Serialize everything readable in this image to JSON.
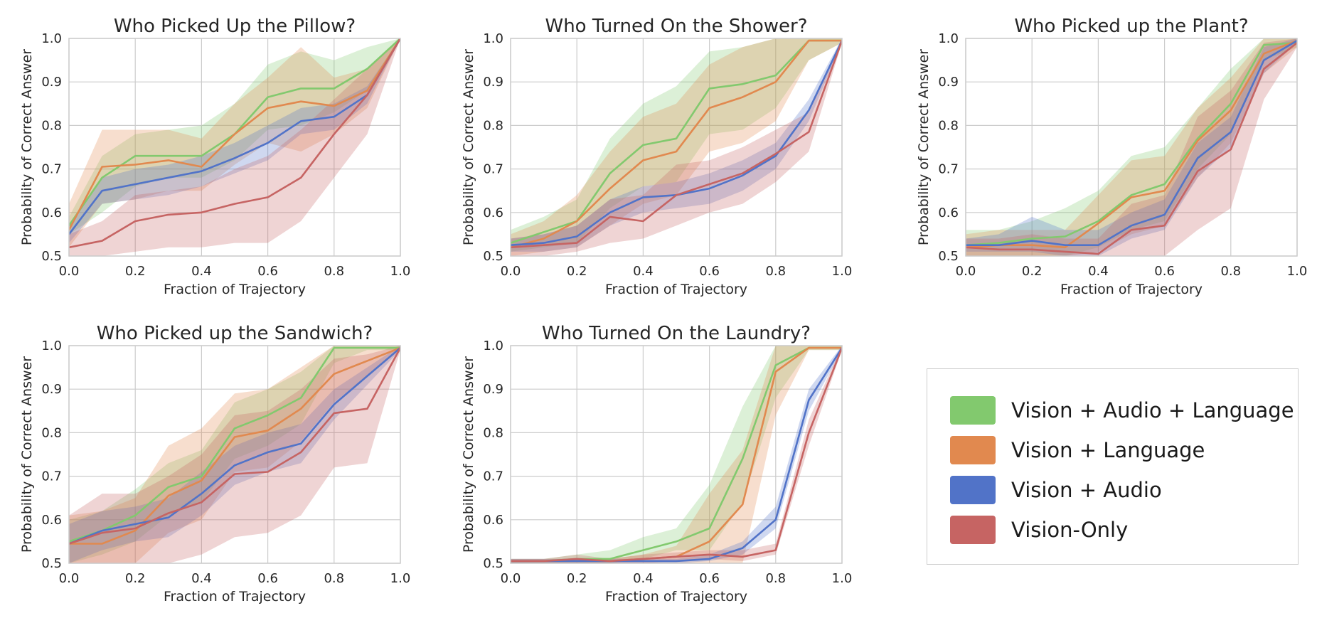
{
  "chart_data": [
    {
      "type": "line",
      "title": "Who Picked Up the Pillow?",
      "xlabel": "Fraction of Trajectory",
      "ylabel": "Probability of Correct Answer",
      "xlim": [
        0,
        1
      ],
      "ylim": [
        0.5,
        1.0
      ],
      "x": [
        0.0,
        0.1,
        0.2,
        0.3,
        0.4,
        0.5,
        0.6,
        0.7,
        0.8,
        0.9,
        1.0
      ],
      "xticks": [
        "0.0",
        "0.2",
        "0.4",
        "0.6",
        "0.8",
        "1.0"
      ],
      "yticks": [
        "0.5",
        "0.6",
        "0.7",
        "0.8",
        "0.9",
        "1.0"
      ],
      "grid": true,
      "series": [
        {
          "name": "Vision + Audio + Language",
          "color": "#82c96e",
          "values": [
            0.57,
            0.68,
            0.73,
            0.73,
            0.73,
            0.78,
            0.865,
            0.885,
            0.885,
            0.93,
            1.0
          ],
          "lower": [
            0.55,
            0.6,
            0.66,
            0.68,
            0.68,
            0.72,
            0.79,
            0.8,
            0.83,
            0.88,
            1.0
          ],
          "upper": [
            0.59,
            0.73,
            0.78,
            0.79,
            0.8,
            0.85,
            0.94,
            0.97,
            0.95,
            0.98,
            1.0
          ]
        },
        {
          "name": "Vision + Language",
          "color": "#e1894f",
          "values": [
            0.56,
            0.705,
            0.71,
            0.72,
            0.705,
            0.78,
            0.84,
            0.855,
            0.845,
            0.88,
            1.0
          ],
          "lower": [
            0.52,
            0.62,
            0.63,
            0.65,
            0.65,
            0.71,
            0.76,
            0.74,
            0.78,
            0.84,
            1.0
          ],
          "upper": [
            0.62,
            0.79,
            0.79,
            0.79,
            0.77,
            0.85,
            0.91,
            0.98,
            0.91,
            0.93,
            1.0
          ]
        },
        {
          "name": "Vision + Audio",
          "color": "#5173c8",
          "values": [
            0.55,
            0.65,
            0.665,
            0.68,
            0.695,
            0.725,
            0.76,
            0.81,
            0.82,
            0.87,
            1.0
          ],
          "lower": [
            0.53,
            0.62,
            0.63,
            0.64,
            0.66,
            0.69,
            0.72,
            0.78,
            0.79,
            0.85,
            1.0
          ],
          "upper": [
            0.57,
            0.68,
            0.7,
            0.71,
            0.73,
            0.76,
            0.8,
            0.84,
            0.85,
            0.89,
            1.0
          ]
        },
        {
          "name": "Vision-Only",
          "color": "#c66463",
          "values": [
            0.52,
            0.535,
            0.58,
            0.595,
            0.6,
            0.62,
            0.635,
            0.68,
            0.78,
            0.87,
            1.0
          ],
          "lower": [
            0.5,
            0.5,
            0.51,
            0.52,
            0.52,
            0.53,
            0.53,
            0.58,
            0.68,
            0.78,
            1.0
          ],
          "upper": [
            0.55,
            0.58,
            0.64,
            0.65,
            0.66,
            0.7,
            0.73,
            0.79,
            0.86,
            0.93,
            1.0
          ]
        }
      ]
    },
    {
      "type": "line",
      "title": "Who Turned On the Shower?",
      "xlabel": "Fraction of Trajectory",
      "ylabel": "Probability of Correct Answer",
      "xlim": [
        0,
        1
      ],
      "ylim": [
        0.5,
        1.0
      ],
      "x": [
        0.0,
        0.1,
        0.2,
        0.3,
        0.4,
        0.5,
        0.6,
        0.7,
        0.8,
        0.9,
        1.0
      ],
      "xticks": [
        "0.0",
        "0.2",
        "0.4",
        "0.6",
        "0.8",
        "1.0"
      ],
      "yticks": [
        "0.5",
        "0.6",
        "0.7",
        "0.8",
        "0.9",
        "1.0"
      ],
      "grid": true,
      "series": [
        {
          "name": "Vision + Audio + Language",
          "color": "#82c96e",
          "values": [
            0.53,
            0.555,
            0.58,
            0.69,
            0.755,
            0.77,
            0.885,
            0.895,
            0.915,
            0.995,
            0.995
          ],
          "lower": [
            0.51,
            0.52,
            0.53,
            0.61,
            0.66,
            0.67,
            0.78,
            0.79,
            0.84,
            0.95,
            0.99
          ],
          "upper": [
            0.56,
            0.59,
            0.63,
            0.77,
            0.85,
            0.89,
            0.97,
            0.98,
            1.0,
            1.0,
            1.0
          ]
        },
        {
          "name": "Vision + Language",
          "color": "#e1894f",
          "values": [
            0.52,
            0.54,
            0.58,
            0.655,
            0.72,
            0.74,
            0.84,
            0.865,
            0.9,
            0.995,
            0.995
          ],
          "lower": [
            0.5,
            0.51,
            0.52,
            0.57,
            0.62,
            0.64,
            0.74,
            0.76,
            0.81,
            0.95,
            0.99
          ],
          "upper": [
            0.55,
            0.58,
            0.64,
            0.74,
            0.82,
            0.85,
            0.94,
            0.98,
            1.0,
            1.0,
            1.0
          ]
        },
        {
          "name": "Vision + Audio",
          "color": "#5173c8",
          "values": [
            0.525,
            0.53,
            0.545,
            0.6,
            0.635,
            0.64,
            0.655,
            0.685,
            0.73,
            0.835,
            0.995
          ],
          "lower": [
            0.51,
            0.51,
            0.52,
            0.57,
            0.6,
            0.61,
            0.62,
            0.65,
            0.7,
            0.81,
            0.99
          ],
          "upper": [
            0.54,
            0.55,
            0.57,
            0.63,
            0.66,
            0.67,
            0.69,
            0.72,
            0.76,
            0.86,
            1.0
          ]
        },
        {
          "name": "Vision-Only",
          "color": "#c66463",
          "values": [
            0.52,
            0.525,
            0.53,
            0.59,
            0.58,
            0.64,
            0.665,
            0.69,
            0.735,
            0.785,
            0.995
          ],
          "lower": [
            0.5,
            0.5,
            0.51,
            0.53,
            0.54,
            0.57,
            0.6,
            0.62,
            0.67,
            0.74,
            0.99
          ],
          "upper": [
            0.54,
            0.55,
            0.57,
            0.63,
            0.64,
            0.71,
            0.72,
            0.75,
            0.79,
            0.83,
            1.0
          ]
        }
      ]
    },
    {
      "type": "line",
      "title": "Who Picked up the Plant?",
      "xlabel": "Fraction of Trajectory",
      "ylabel": "Probability of Correct Answer",
      "xlim": [
        0,
        1
      ],
      "ylim": [
        0.5,
        1.0
      ],
      "x": [
        0.0,
        0.1,
        0.2,
        0.3,
        0.4,
        0.5,
        0.6,
        0.7,
        0.8,
        0.9,
        1.0
      ],
      "xticks": [
        "0.0",
        "0.2",
        "0.4",
        "0.6",
        "0.8",
        "1.0"
      ],
      "yticks": [
        "0.5",
        "0.6",
        "0.7",
        "0.8",
        "0.9",
        "1.0"
      ],
      "grid": true,
      "series": [
        {
          "name": "Vision + Audio + Language",
          "color": "#82c96e",
          "values": [
            0.525,
            0.53,
            0.54,
            0.545,
            0.58,
            0.64,
            0.665,
            0.77,
            0.85,
            0.985,
            0.99
          ],
          "lower": [
            0.5,
            0.5,
            0.5,
            0.5,
            0.52,
            0.56,
            0.58,
            0.7,
            0.78,
            0.95,
            0.98
          ],
          "upper": [
            0.56,
            0.56,
            0.58,
            0.61,
            0.65,
            0.73,
            0.75,
            0.84,
            0.93,
            1.0,
            1.0
          ]
        },
        {
          "name": "Vision + Language",
          "color": "#e1894f",
          "values": [
            0.52,
            0.525,
            0.525,
            0.52,
            0.575,
            0.635,
            0.65,
            0.765,
            0.835,
            0.965,
            0.995
          ],
          "lower": [
            0.5,
            0.5,
            0.5,
            0.5,
            0.51,
            0.55,
            0.57,
            0.68,
            0.76,
            0.92,
            0.98
          ],
          "upper": [
            0.55,
            0.56,
            0.56,
            0.56,
            0.64,
            0.72,
            0.73,
            0.84,
            0.91,
            1.0,
            1.0
          ]
        },
        {
          "name": "Vision + Audio",
          "color": "#5173c8",
          "values": [
            0.525,
            0.525,
            0.535,
            0.525,
            0.525,
            0.57,
            0.595,
            0.725,
            0.785,
            0.95,
            0.995
          ],
          "lower": [
            0.51,
            0.51,
            0.51,
            0.5,
            0.5,
            0.54,
            0.56,
            0.68,
            0.75,
            0.92,
            0.99
          ],
          "upper": [
            0.54,
            0.55,
            0.59,
            0.56,
            0.56,
            0.6,
            0.63,
            0.76,
            0.82,
            0.98,
            1.0
          ]
        },
        {
          "name": "Vision-Only",
          "color": "#c66463",
          "values": [
            0.52,
            0.515,
            0.515,
            0.51,
            0.505,
            0.56,
            0.57,
            0.695,
            0.745,
            0.93,
            0.99
          ],
          "lower": [
            0.5,
            0.48,
            0.48,
            0.47,
            0.47,
            0.5,
            0.5,
            0.56,
            0.61,
            0.86,
            0.98
          ],
          "upper": [
            0.54,
            0.54,
            0.55,
            0.54,
            0.54,
            0.62,
            0.64,
            0.82,
            0.88,
            0.99,
            1.0
          ]
        }
      ]
    },
    {
      "type": "line",
      "title": "Who Picked up the Sandwich?",
      "xlabel": "Fraction of Trajectory",
      "ylabel": "Probability of Correct Answer",
      "xlim": [
        0,
        1
      ],
      "ylim": [
        0.5,
        1.0
      ],
      "x": [
        0.0,
        0.1,
        0.2,
        0.3,
        0.4,
        0.5,
        0.6,
        0.7,
        0.8,
        0.9,
        1.0
      ],
      "xticks": [
        "0.0",
        "0.2",
        "0.4",
        "0.6",
        "0.8",
        "1.0"
      ],
      "yticks": [
        "0.5",
        "0.6",
        "0.7",
        "0.8",
        "0.9",
        "1.0"
      ],
      "grid": true,
      "series": [
        {
          "name": "Vision + Audio + Language",
          "color": "#82c96e",
          "values": [
            0.55,
            0.575,
            0.61,
            0.675,
            0.7,
            0.81,
            0.84,
            0.88,
            0.995,
            0.995,
            0.995
          ],
          "lower": [
            0.5,
            0.52,
            0.55,
            0.61,
            0.64,
            0.74,
            0.77,
            0.82,
            0.96,
            0.99,
            0.99
          ],
          "upper": [
            0.6,
            0.62,
            0.67,
            0.73,
            0.76,
            0.87,
            0.9,
            0.94,
            1.0,
            1.0,
            1.0
          ]
        },
        {
          "name": "Vision + Language",
          "color": "#e1894f",
          "values": [
            0.545,
            0.545,
            0.575,
            0.655,
            0.69,
            0.79,
            0.805,
            0.855,
            0.935,
            0.965,
            0.995
          ],
          "lower": [
            0.48,
            0.47,
            0.5,
            0.57,
            0.6,
            0.71,
            0.72,
            0.78,
            0.87,
            0.93,
            0.99
          ],
          "upper": [
            0.61,
            0.62,
            0.65,
            0.77,
            0.81,
            0.89,
            0.9,
            0.95,
            1.0,
            1.0,
            1.0
          ]
        },
        {
          "name": "Vision + Audio",
          "color": "#5173c8",
          "values": [
            0.545,
            0.575,
            0.59,
            0.605,
            0.66,
            0.725,
            0.755,
            0.775,
            0.865,
            0.93,
            0.995
          ],
          "lower": [
            0.5,
            0.53,
            0.55,
            0.56,
            0.61,
            0.68,
            0.71,
            0.73,
            0.83,
            0.91,
            0.99
          ],
          "upper": [
            0.59,
            0.62,
            0.63,
            0.65,
            0.71,
            0.77,
            0.8,
            0.82,
            0.9,
            0.95,
            1.0
          ]
        },
        {
          "name": "Vision-Only",
          "color": "#c66463",
          "values": [
            0.545,
            0.57,
            0.58,
            0.615,
            0.64,
            0.705,
            0.71,
            0.755,
            0.845,
            0.855,
            0.995
          ],
          "lower": [
            0.48,
            0.47,
            0.47,
            0.5,
            0.52,
            0.56,
            0.57,
            0.61,
            0.72,
            0.73,
            0.99
          ],
          "upper": [
            0.61,
            0.66,
            0.66,
            0.7,
            0.75,
            0.84,
            0.85,
            0.9,
            0.97,
            0.98,
            1.0
          ]
        }
      ]
    },
    {
      "type": "line",
      "title": "Who Turned On the Laundry?",
      "xlabel": "Fraction of Trajectory",
      "ylabel": "Probability of Correct Answer",
      "xlim": [
        0,
        1
      ],
      "ylim": [
        0.5,
        1.0
      ],
      "x": [
        0.0,
        0.1,
        0.2,
        0.3,
        0.4,
        0.5,
        0.6,
        0.7,
        0.8,
        0.9,
        1.0
      ],
      "xticks": [
        "0.0",
        "0.2",
        "0.4",
        "0.6",
        "0.8",
        "1.0"
      ],
      "yticks": [
        "0.5",
        "0.6",
        "0.7",
        "0.8",
        "0.9",
        "1.0"
      ],
      "grid": true,
      "series": [
        {
          "name": "Vision + Audio + Language",
          "color": "#82c96e",
          "values": [
            0.505,
            0.505,
            0.51,
            0.51,
            0.53,
            0.55,
            0.58,
            0.74,
            0.955,
            0.995,
            0.995
          ],
          "lower": [
            0.5,
            0.5,
            0.5,
            0.5,
            0.51,
            0.53,
            0.53,
            0.64,
            0.88,
            0.99,
            0.99
          ],
          "upper": [
            0.51,
            0.51,
            0.52,
            0.53,
            0.56,
            0.58,
            0.68,
            0.86,
            1.0,
            1.0,
            1.0
          ]
        },
        {
          "name": "Vision + Language",
          "color": "#e1894f",
          "values": [
            0.505,
            0.505,
            0.505,
            0.505,
            0.51,
            0.515,
            0.55,
            0.635,
            0.94,
            0.995,
            0.995
          ],
          "lower": [
            0.5,
            0.5,
            0.5,
            0.5,
            0.5,
            0.5,
            0.5,
            0.5,
            0.84,
            0.99,
            0.99
          ],
          "upper": [
            0.51,
            0.51,
            0.51,
            0.51,
            0.52,
            0.54,
            0.66,
            0.76,
            1.0,
            1.0,
            1.0
          ]
        },
        {
          "name": "Vision + Audio",
          "color": "#5173c8",
          "values": [
            0.505,
            0.505,
            0.505,
            0.505,
            0.505,
            0.505,
            0.51,
            0.535,
            0.6,
            0.875,
            0.995
          ],
          "lower": [
            0.5,
            0.5,
            0.5,
            0.5,
            0.5,
            0.5,
            0.505,
            0.52,
            0.58,
            0.85,
            0.99
          ],
          "upper": [
            0.51,
            0.51,
            0.51,
            0.51,
            0.51,
            0.51,
            0.52,
            0.55,
            0.63,
            0.9,
            1.0
          ]
        },
        {
          "name": "Vision-Only",
          "color": "#c66463",
          "values": [
            0.505,
            0.505,
            0.51,
            0.505,
            0.51,
            0.515,
            0.52,
            0.515,
            0.53,
            0.8,
            0.995
          ],
          "lower": [
            0.5,
            0.5,
            0.5,
            0.5,
            0.5,
            0.505,
            0.51,
            0.505,
            0.52,
            0.77,
            0.99
          ],
          "upper": [
            0.51,
            0.51,
            0.52,
            0.51,
            0.52,
            0.525,
            0.53,
            0.53,
            0.545,
            0.83,
            1.0
          ]
        }
      ]
    }
  ],
  "legend": {
    "items": [
      {
        "label": "Vision + Audio + Language",
        "color": "#82c96e"
      },
      {
        "label": "Vision + Language",
        "color": "#e1894f"
      },
      {
        "label": "Vision + Audio",
        "color": "#5173c8"
      },
      {
        "label": "Vision-Only",
        "color": "#c66463"
      }
    ]
  }
}
